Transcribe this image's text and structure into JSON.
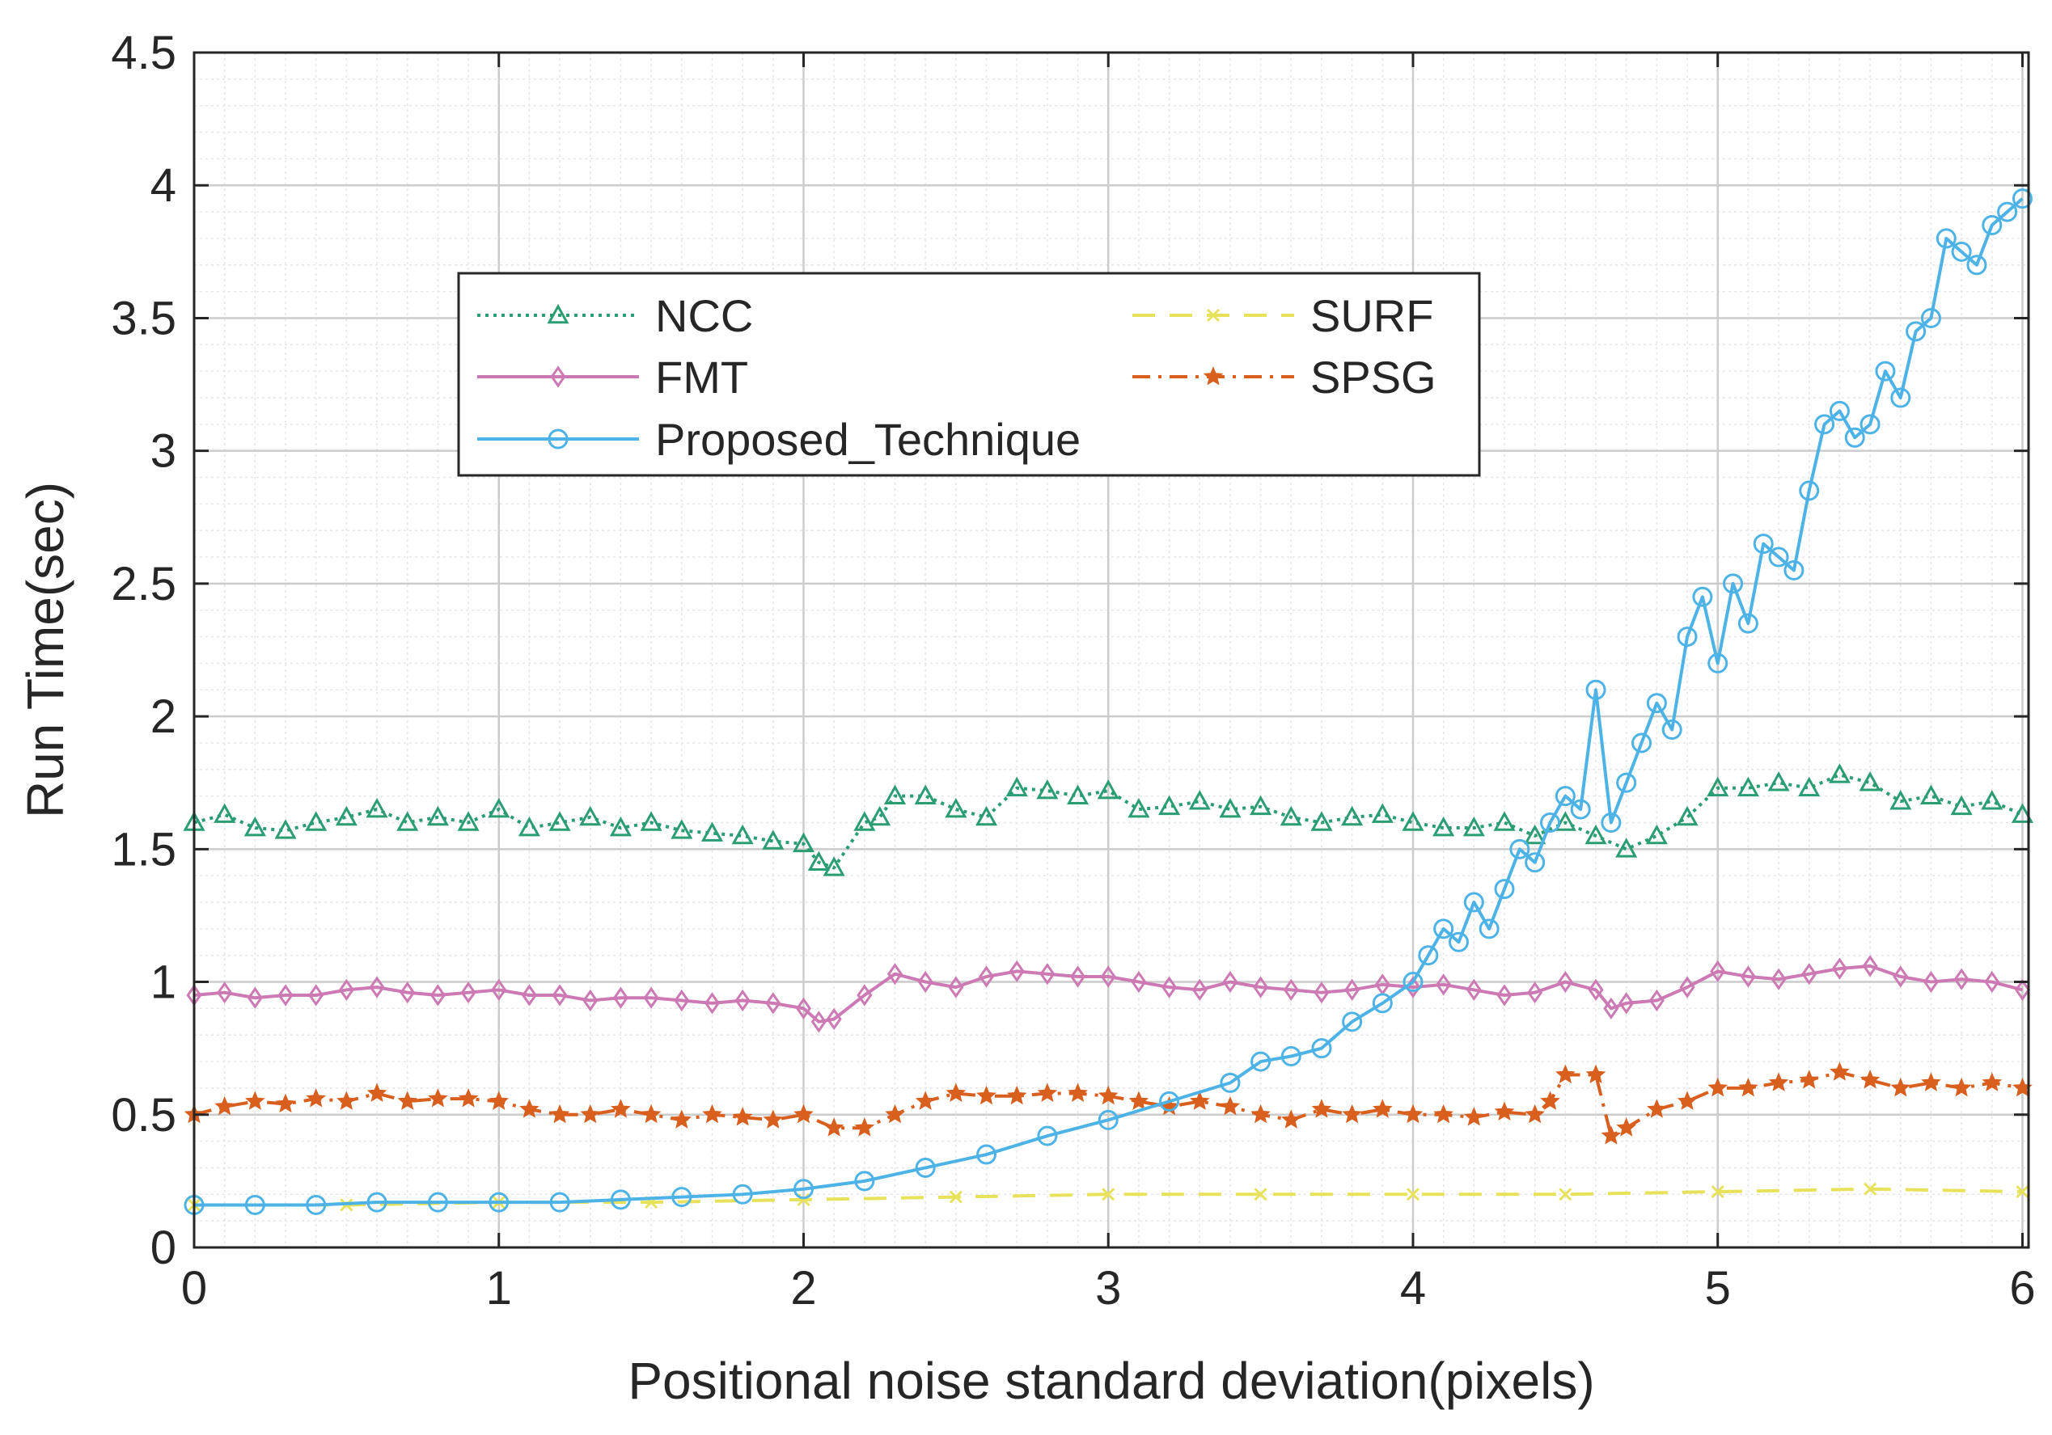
{
  "chart_data": {
    "type": "line",
    "title": "",
    "xlabel": "Positional noise standard deviation(pixels)",
    "ylabel": "Run Time(sec)",
    "xlim": [
      0,
      6.02
    ],
    "ylim": [
      0,
      4.5
    ],
    "xticks": [
      0,
      1,
      2,
      3,
      4,
      5,
      6
    ],
    "xtick_labels": [
      "0",
      "1",
      "2",
      "3",
      "4",
      "5",
      "6"
    ],
    "yticks": [
      0,
      0.5,
      1,
      1.5,
      2,
      2.5,
      3,
      3.5,
      4,
      4.5
    ],
    "ytick_labels": [
      "0",
      "0.5",
      "1",
      "1.5",
      "2",
      "2.5",
      "3",
      "3.5",
      "4",
      "4.5"
    ],
    "grid": true,
    "minor_grid": true,
    "legend_position": "upper-left-center",
    "series": [
      {
        "name": "NCC",
        "color": "#2a9d72",
        "line": "dotted",
        "marker": "triangle",
        "x": [
          0,
          0.1,
          0.2,
          0.3,
          0.4,
          0.5,
          0.6,
          0.7,
          0.8,
          0.9,
          1.0,
          1.1,
          1.2,
          1.3,
          1.4,
          1.5,
          1.6,
          1.7,
          1.8,
          1.9,
          2.0,
          2.05,
          2.1,
          2.2,
          2.25,
          2.3,
          2.4,
          2.5,
          2.6,
          2.7,
          2.8,
          2.9,
          3.0,
          3.1,
          3.2,
          3.3,
          3.4,
          3.5,
          3.6,
          3.7,
          3.8,
          3.9,
          4.0,
          4.1,
          4.2,
          4.3,
          4.4,
          4.5,
          4.6,
          4.7,
          4.8,
          4.9,
          5.0,
          5.1,
          5.2,
          5.3,
          5.4,
          5.5,
          5.6,
          5.7,
          5.8,
          5.9,
          6.0
        ],
        "y": [
          1.6,
          1.63,
          1.58,
          1.57,
          1.6,
          1.62,
          1.65,
          1.6,
          1.62,
          1.6,
          1.65,
          1.58,
          1.6,
          1.62,
          1.58,
          1.6,
          1.57,
          1.56,
          1.55,
          1.53,
          1.52,
          1.45,
          1.43,
          1.6,
          1.62,
          1.7,
          1.7,
          1.65,
          1.62,
          1.73,
          1.72,
          1.7,
          1.72,
          1.65,
          1.66,
          1.68,
          1.65,
          1.66,
          1.62,
          1.6,
          1.62,
          1.63,
          1.6,
          1.58,
          1.58,
          1.6,
          1.55,
          1.6,
          1.55,
          1.5,
          1.55,
          1.62,
          1.73,
          1.73,
          1.75,
          1.73,
          1.78,
          1.75,
          1.68,
          1.7,
          1.66,
          1.68,
          1.63
        ]
      },
      {
        "name": "FMT",
        "color": "#cc79b4",
        "line": "solid",
        "marker": "diamond",
        "x": [
          0,
          0.1,
          0.2,
          0.3,
          0.4,
          0.5,
          0.6,
          0.7,
          0.8,
          0.9,
          1.0,
          1.1,
          1.2,
          1.3,
          1.4,
          1.5,
          1.6,
          1.7,
          1.8,
          1.9,
          2.0,
          2.05,
          2.1,
          2.2,
          2.3,
          2.4,
          2.5,
          2.6,
          2.7,
          2.8,
          2.9,
          3.0,
          3.1,
          3.2,
          3.3,
          3.4,
          3.5,
          3.6,
          3.7,
          3.8,
          3.9,
          4.0,
          4.1,
          4.2,
          4.3,
          4.4,
          4.5,
          4.6,
          4.65,
          4.7,
          4.8,
          4.9,
          5.0,
          5.1,
          5.2,
          5.3,
          5.4,
          5.5,
          5.6,
          5.7,
          5.8,
          5.9,
          6.0
        ],
        "y": [
          0.95,
          0.96,
          0.94,
          0.95,
          0.95,
          0.97,
          0.98,
          0.96,
          0.95,
          0.96,
          0.97,
          0.95,
          0.95,
          0.93,
          0.94,
          0.94,
          0.93,
          0.92,
          0.93,
          0.92,
          0.9,
          0.85,
          0.86,
          0.95,
          1.03,
          1.0,
          0.98,
          1.02,
          1.04,
          1.03,
          1.02,
          1.02,
          1.0,
          0.98,
          0.97,
          1.0,
          0.98,
          0.97,
          0.96,
          0.97,
          0.99,
          0.98,
          0.99,
          0.97,
          0.95,
          0.96,
          1.0,
          0.97,
          0.9,
          0.92,
          0.93,
          0.98,
          1.04,
          1.02,
          1.01,
          1.03,
          1.05,
          1.06,
          1.02,
          1.0,
          1.01,
          1.0,
          0.97
        ]
      },
      {
        "name": "SURF",
        "color": "#e8e25a",
        "line": "dashed",
        "marker": "x",
        "x": [
          0,
          0.5,
          1.0,
          1.5,
          2.0,
          2.5,
          3.0,
          3.5,
          4.0,
          4.5,
          5.0,
          5.5,
          6.0
        ],
        "y": [
          0.16,
          0.16,
          0.17,
          0.17,
          0.18,
          0.19,
          0.2,
          0.2,
          0.2,
          0.2,
          0.21,
          0.22,
          0.21
        ]
      },
      {
        "name": "SPSG",
        "color": "#d95f1e",
        "line": "dashdot",
        "marker": "star",
        "x": [
          0,
          0.1,
          0.2,
          0.3,
          0.4,
          0.5,
          0.6,
          0.7,
          0.8,
          0.9,
          1.0,
          1.1,
          1.2,
          1.3,
          1.4,
          1.5,
          1.6,
          1.7,
          1.8,
          1.9,
          2.0,
          2.1,
          2.2,
          2.3,
          2.4,
          2.5,
          2.6,
          2.7,
          2.8,
          2.9,
          3.0,
          3.1,
          3.2,
          3.3,
          3.4,
          3.5,
          3.6,
          3.7,
          3.8,
          3.9,
          4.0,
          4.1,
          4.2,
          4.3,
          4.4,
          4.45,
          4.5,
          4.6,
          4.65,
          4.7,
          4.8,
          4.9,
          5.0,
          5.1,
          5.2,
          5.3,
          5.4,
          5.5,
          5.6,
          5.7,
          5.8,
          5.9,
          6.0
        ],
        "y": [
          0.5,
          0.53,
          0.55,
          0.54,
          0.56,
          0.55,
          0.58,
          0.55,
          0.56,
          0.56,
          0.55,
          0.52,
          0.5,
          0.5,
          0.52,
          0.5,
          0.48,
          0.5,
          0.49,
          0.48,
          0.5,
          0.45,
          0.45,
          0.5,
          0.55,
          0.58,
          0.57,
          0.57,
          0.58,
          0.58,
          0.57,
          0.55,
          0.53,
          0.55,
          0.53,
          0.5,
          0.48,
          0.52,
          0.5,
          0.52,
          0.5,
          0.5,
          0.49,
          0.51,
          0.5,
          0.55,
          0.65,
          0.65,
          0.42,
          0.45,
          0.52,
          0.55,
          0.6,
          0.6,
          0.62,
          0.63,
          0.66,
          0.63,
          0.6,
          0.62,
          0.6,
          0.62,
          0.6
        ]
      },
      {
        "name": "Proposed_Technique",
        "color": "#4db3e6",
        "line": "solid",
        "marker": "circle",
        "x": [
          0,
          0.2,
          0.4,
          0.6,
          0.8,
          1.0,
          1.2,
          1.4,
          1.6,
          1.8,
          2.0,
          2.2,
          2.4,
          2.6,
          2.8,
          3.0,
          3.2,
          3.4,
          3.5,
          3.6,
          3.7,
          3.8,
          3.9,
          4.0,
          4.05,
          4.1,
          4.15,
          4.2,
          4.25,
          4.3,
          4.35,
          4.4,
          4.45,
          4.5,
          4.55,
          4.6,
          4.65,
          4.7,
          4.75,
          4.8,
          4.85,
          4.9,
          4.95,
          5.0,
          5.05,
          5.1,
          5.15,
          5.2,
          5.25,
          5.3,
          5.35,
          5.4,
          5.45,
          5.5,
          5.55,
          5.6,
          5.65,
          5.7,
          5.75,
          5.8,
          5.85,
          5.9,
          5.95,
          6.0
        ],
        "y": [
          0.16,
          0.16,
          0.16,
          0.17,
          0.17,
          0.17,
          0.17,
          0.18,
          0.19,
          0.2,
          0.22,
          0.25,
          0.3,
          0.35,
          0.42,
          0.48,
          0.55,
          0.62,
          0.7,
          0.72,
          0.75,
          0.85,
          0.92,
          1.0,
          1.1,
          1.2,
          1.15,
          1.3,
          1.2,
          1.35,
          1.5,
          1.45,
          1.6,
          1.7,
          1.65,
          2.1,
          1.6,
          1.75,
          1.9,
          2.05,
          1.95,
          2.3,
          2.45,
          2.2,
          2.5,
          2.35,
          2.65,
          2.6,
          2.55,
          2.85,
          3.1,
          3.15,
          3.05,
          3.1,
          3.3,
          3.2,
          3.45,
          3.5,
          3.8,
          3.75,
          3.7,
          3.85,
          3.9,
          3.95
        ]
      }
    ]
  }
}
